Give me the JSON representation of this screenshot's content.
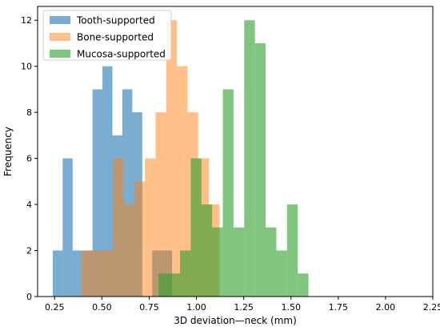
{
  "chart_data": {
    "type": "bar",
    "title": "",
    "xlabel": "3D deviation—neck (mm)",
    "ylabel": "Frequency",
    "xlim": [
      0.16,
      2.25
    ],
    "ylim": [
      0,
      12.6
    ],
    "xticks": [
      0.25,
      0.5,
      0.75,
      1.0,
      1.25,
      1.5,
      1.75,
      2.0,
      2.25
    ],
    "xtick_labels": [
      "0.25",
      "0.50",
      "0.75",
      "1.00",
      "1.25",
      "1.50",
      "1.75",
      "2.00",
      "2.25"
    ],
    "yticks": [
      0,
      2,
      4,
      6,
      8,
      10,
      12
    ],
    "ytick_labels": [
      "0",
      "2",
      "4",
      "6",
      "8",
      "10",
      "12"
    ],
    "grid": false,
    "legend_position": "top-left",
    "series": [
      {
        "name": "Tooth-supported",
        "color": "#1f77b4",
        "opacity": 0.6,
        "bin_start": 0.24,
        "bin_width": 0.0526,
        "counts": [
          2,
          6,
          2,
          2,
          9,
          10,
          7,
          9,
          8,
          0,
          2,
          2
        ]
      },
      {
        "name": "Bone-supported",
        "color": "#ff7f0e",
        "opacity": 0.5,
        "bin_start": 0.39,
        "bin_width": 0.0563,
        "counts": [
          2,
          2,
          2,
          6,
          4,
          5,
          6,
          8,
          12,
          10,
          8,
          6,
          4
        ]
      },
      {
        "name": "Mucosa-supported",
        "color": "#2ca02c",
        "opacity": 0.6,
        "bin_start": 0.8,
        "bin_width": 0.0566,
        "counts": [
          1,
          1,
          2,
          6,
          4,
          3,
          9,
          3,
          12,
          11,
          3,
          2,
          4,
          1
        ]
      }
    ]
  }
}
